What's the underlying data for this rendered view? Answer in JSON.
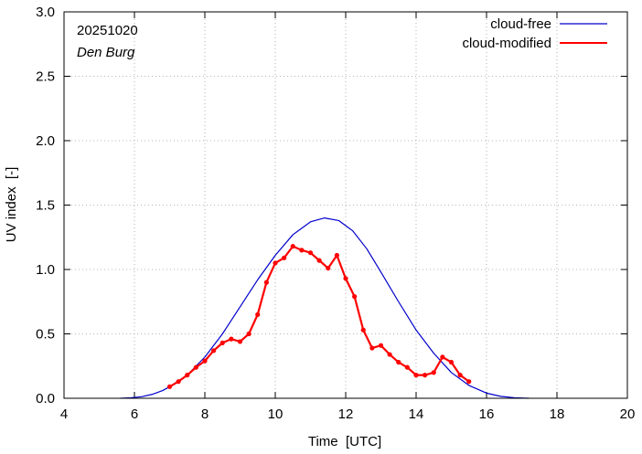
{
  "chart_data": {
    "type": "line",
    "title": "",
    "annotations": {
      "date": "20251020",
      "location": "Den Burg"
    },
    "xlabel": "Time  [UTC]",
    "ylabel": "UV index  [-]",
    "xlim": [
      4,
      20
    ],
    "ylim": [
      0.0,
      3.0
    ],
    "xticks": [
      4,
      6,
      8,
      10,
      12,
      14,
      16,
      18,
      20
    ],
    "yticks": [
      0.0,
      0.5,
      1.0,
      1.5,
      2.0,
      2.5,
      3.0
    ],
    "ytick_labels": [
      "0.0",
      "0.5",
      "1.0",
      "1.5",
      "2.0",
      "2.5",
      "3.0"
    ],
    "legend_position": "top-right",
    "series": [
      {
        "name": "cloud-free",
        "color": "#0000cc",
        "style": "line",
        "x": [
          5.6,
          5.9,
          6.2,
          6.5,
          6.8,
          7.0,
          7.5,
          8.0,
          8.5,
          9.0,
          9.5,
          10.0,
          10.5,
          11.0,
          11.4,
          11.8,
          12.2,
          12.6,
          13.0,
          13.5,
          14.0,
          14.5,
          15.0,
          15.5,
          16.0,
          16.4,
          16.8,
          17.2
        ],
        "y": [
          0.0,
          0.004,
          0.012,
          0.03,
          0.06,
          0.09,
          0.18,
          0.32,
          0.5,
          0.71,
          0.92,
          1.11,
          1.27,
          1.37,
          1.4,
          1.38,
          1.3,
          1.16,
          0.98,
          0.75,
          0.53,
          0.35,
          0.2,
          0.1,
          0.04,
          0.015,
          0.004,
          0.0
        ]
      },
      {
        "name": "cloud-modified",
        "color": "#ff0000",
        "style": "line-points",
        "x": [
          7.0,
          7.25,
          7.5,
          7.75,
          8.0,
          8.25,
          8.5,
          8.75,
          9.0,
          9.25,
          9.5,
          9.75,
          10.0,
          10.25,
          10.5,
          10.75,
          11.0,
          11.25,
          11.5,
          11.75,
          12.0,
          12.25,
          12.5,
          12.75,
          13.0,
          13.25,
          13.5,
          13.75,
          14.0,
          14.25,
          14.5,
          14.75,
          15.0,
          15.25,
          15.5
        ],
        "y": [
          0.09,
          0.13,
          0.18,
          0.24,
          0.29,
          0.37,
          0.43,
          0.46,
          0.44,
          0.5,
          0.65,
          0.9,
          1.05,
          1.09,
          1.18,
          1.15,
          1.13,
          1.07,
          1.01,
          1.11,
          0.93,
          0.79,
          0.53,
          0.39,
          0.41,
          0.34,
          0.28,
          0.24,
          0.18,
          0.18,
          0.2,
          0.32,
          0.28,
          0.18,
          0.13
        ]
      }
    ]
  }
}
